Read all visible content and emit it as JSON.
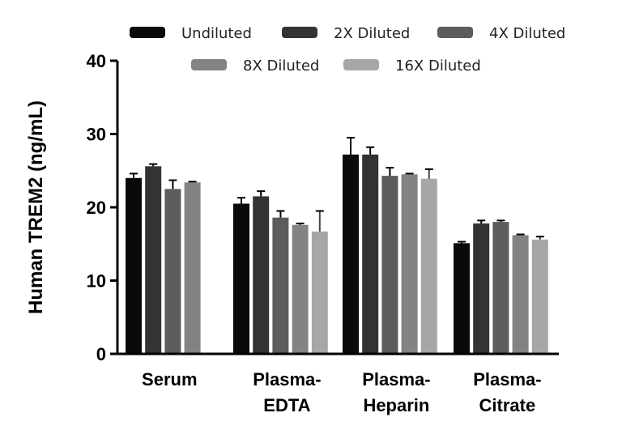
{
  "chart_data": {
    "type": "bar",
    "title": "",
    "xlabel": "",
    "ylabel": "Human TREM2 (ng/mL)",
    "ylim": [
      0,
      40
    ],
    "yticks": [
      0,
      10,
      20,
      30,
      40
    ],
    "categories": [
      {
        "line1": "Serum",
        "line2": ""
      },
      {
        "line1": "Plasma-",
        "line2": "EDTA"
      },
      {
        "line1": "Plasma-",
        "line2": "Heparin"
      },
      {
        "line1": "Plasma-",
        "line2": "Citrate"
      }
    ],
    "series": [
      {
        "name": "Undiluted",
        "color": "#0a0a0a",
        "values": [
          24.0,
          20.5,
          27.2,
          15.1
        ],
        "errors": [
          0.6,
          0.8,
          2.3,
          0.2
        ]
      },
      {
        "name": "2X Diluted",
        "color": "#333333",
        "values": [
          25.6,
          21.5,
          27.2,
          17.8
        ],
        "errors": [
          0.3,
          0.7,
          1.0,
          0.4
        ]
      },
      {
        "name": "4X Diluted",
        "color": "#5c5c5c",
        "values": [
          22.5,
          18.6,
          24.3,
          18.0
        ],
        "errors": [
          1.2,
          0.9,
          1.1,
          0.2
        ]
      },
      {
        "name": "8X Diluted",
        "color": "#838383",
        "values": [
          23.4,
          17.6,
          24.5,
          16.2
        ],
        "errors": [
          0.1,
          0.2,
          0.1,
          0.1
        ]
      },
      {
        "name": "16X Diluted",
        "color": "#a6a6a6",
        "values": [
          null,
          16.7,
          23.9,
          15.6
        ],
        "errors": [
          null,
          2.8,
          1.3,
          0.4
        ]
      }
    ],
    "legend_position": "top"
  }
}
